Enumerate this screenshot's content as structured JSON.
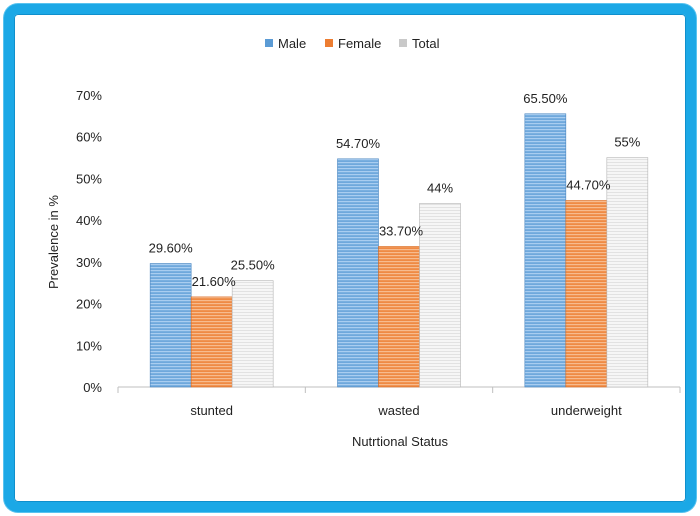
{
  "chart_data": {
    "type": "bar",
    "title": "",
    "xlabel": "Nutrtional Status",
    "ylabel": "Prevalence in %",
    "categories": [
      "stunted",
      "wasted",
      "underweight"
    ],
    "ylim": [
      0,
      70
    ],
    "yticks": [
      0,
      10,
      20,
      30,
      40,
      50,
      60,
      70
    ],
    "ytick_labels": [
      "0%",
      "10%",
      "20%",
      "30%",
      "40%",
      "50%",
      "60%",
      "70%"
    ],
    "grid": false,
    "legend_position": "top-center",
    "series": [
      {
        "name": "Male",
        "color": "#5b9bd5",
        "values": [
          29.6,
          54.7,
          65.5
        ],
        "labels": [
          "29.60%",
          "54.70%",
          "65.50%"
        ]
      },
      {
        "name": "Female",
        "color": "#ed7d31",
        "values": [
          21.6,
          33.7,
          44.7
        ],
        "labels": [
          "21.60%",
          "33.70%",
          "44.70%"
        ]
      },
      {
        "name": "Total",
        "color": "#c9c9c9",
        "values": [
          25.5,
          44,
          55
        ],
        "labels": [
          "25.50%",
          "44%",
          "55%"
        ]
      }
    ]
  }
}
